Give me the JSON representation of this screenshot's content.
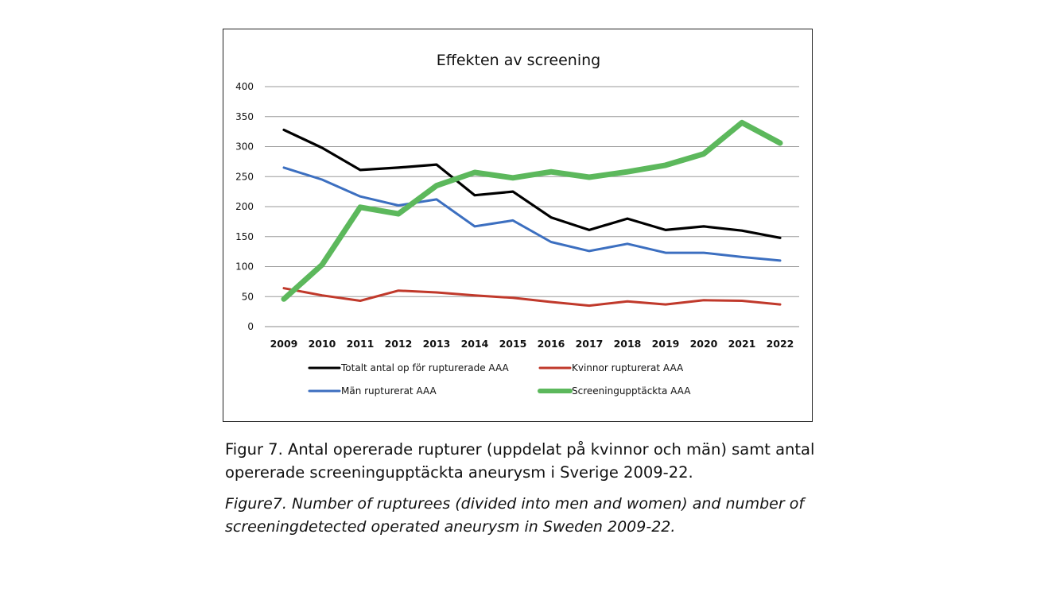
{
  "chart_data": {
    "type": "line",
    "title": "Effekten av screening",
    "categories": [
      "2009",
      "2010",
      "2011",
      "2012",
      "2013",
      "2014",
      "2015",
      "2016",
      "2017",
      "2018",
      "2019",
      "2020",
      "2021",
      "2022"
    ],
    "ylim": [
      0,
      400
    ],
    "yticks": [
      0,
      50,
      100,
      150,
      200,
      250,
      300,
      350,
      400
    ],
    "grid": true,
    "legend_position": "bottom",
    "series": [
      {
        "name": "Totalt antal op för rupturerade AAA",
        "color": "#000000",
        "values": [
          328,
          298,
          261,
          265,
          270,
          219,
          225,
          182,
          161,
          180,
          161,
          167,
          160,
          148
        ]
      },
      {
        "name": "Kvinnor rupturerat AAA",
        "color": "#c0392b",
        "values": [
          64,
          52,
          43,
          60,
          57,
          52,
          48,
          41,
          35,
          42,
          37,
          44,
          43,
          37
        ]
      },
      {
        "name": "Män rupturerat AAA",
        "color": "#3c6fc0",
        "values": [
          265,
          245,
          217,
          202,
          212,
          167,
          177,
          141,
          126,
          138,
          123,
          123,
          116,
          110
        ]
      },
      {
        "name": "Screeningupptäckta AAA",
        "color": "#5cb85c",
        "values": [
          46,
          103,
          199,
          188,
          235,
          257,
          248,
          258,
          249,
          258,
          269,
          288,
          340,
          306
        ]
      }
    ]
  },
  "captions": {
    "sv_label": "Figur 7.",
    "sv_text": "Antal opererade rupturer (uppdelat på kvinnor och män) samt antal opererade screeningupptäckta aneurysm i Sverige 2009-22.",
    "en_label": "Figure7.",
    "en_text": "Number of rupturees (divided into men and women) and number of screeningdetected operated aneurysm in Sweden 2009-22."
  }
}
